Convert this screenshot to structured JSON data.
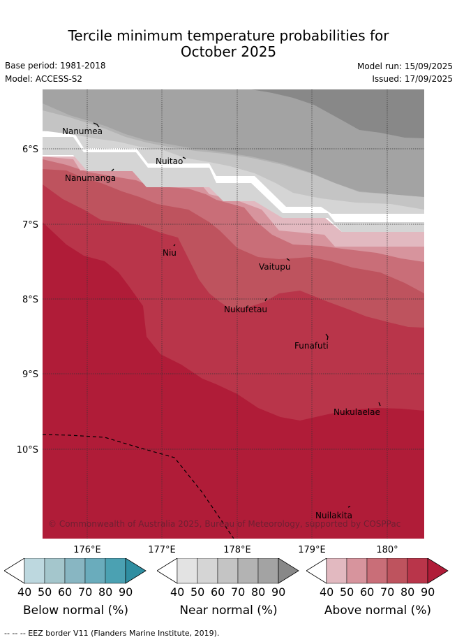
{
  "title_line1": "Tercile minimum temperature probabilities for",
  "title_line2": "October 2025",
  "base_period": "Base period: 1981-2018",
  "model": "Model: ACCESS-S2",
  "model_run": "Model run: 15/09/2025",
  "issued": "Issued: 17/09/2025",
  "map": {
    "lat_labels": [
      "6°S",
      "7°S",
      "8°S",
      "9°S",
      "10°S"
    ],
    "lon_labels": [
      "176°E",
      "177°E",
      "178°E",
      "179°E",
      "180°"
    ],
    "places": [
      "Nanumea",
      "Nuitao",
      "Nanumanga",
      "Niu",
      "Vaitupu",
      "Nukufetau",
      "Funafuti",
      "Nukulaelae",
      "Nuilakita"
    ],
    "copyright": "© Commonwealth of Australia 2025, Bureau of Meteorology, supported by COSPPac",
    "colors": {
      "above_40": "#e2b9c0",
      "above_50": "#d7949d",
      "above_60": "#c96e78",
      "above_70": "#be535e",
      "above_80": "#b9354a",
      "above_90": "#b01c38",
      "near_40": "#e3e3e3",
      "near_50": "#d5d5d5",
      "near_60": "#c4c4c4",
      "near_70": "#b3b3b3",
      "near_80": "#a3a3a3",
      "near_90": "#888888"
    }
  },
  "colorbars": [
    {
      "title": "Below normal (%)",
      "ticks": [
        "40",
        "50",
        "60",
        "70",
        "80",
        "90"
      ],
      "colors": [
        "#bdd8df",
        "#a4c6cc",
        "#88b6c2",
        "#6aacbc",
        "#4ba1b2",
        "#2f8ea1"
      ]
    },
    {
      "title": "Near normal (%)",
      "ticks": [
        "40",
        "50",
        "60",
        "70",
        "80",
        "90"
      ],
      "colors": [
        "#e3e3e3",
        "#d5d5d5",
        "#c4c4c4",
        "#b3b3b3",
        "#a3a3a3",
        "#888888"
      ]
    },
    {
      "title": "Above normal (%)",
      "ticks": [
        "40",
        "50",
        "60",
        "70",
        "80",
        "90"
      ],
      "colors": [
        "#e2b9c0",
        "#d7949d",
        "#c96e78",
        "#be535e",
        "#b9354a",
        "#b01c38"
      ]
    }
  ],
  "footer": "-- -- -- EEZ border V11 (Flanders Marine Institute, 2019)."
}
